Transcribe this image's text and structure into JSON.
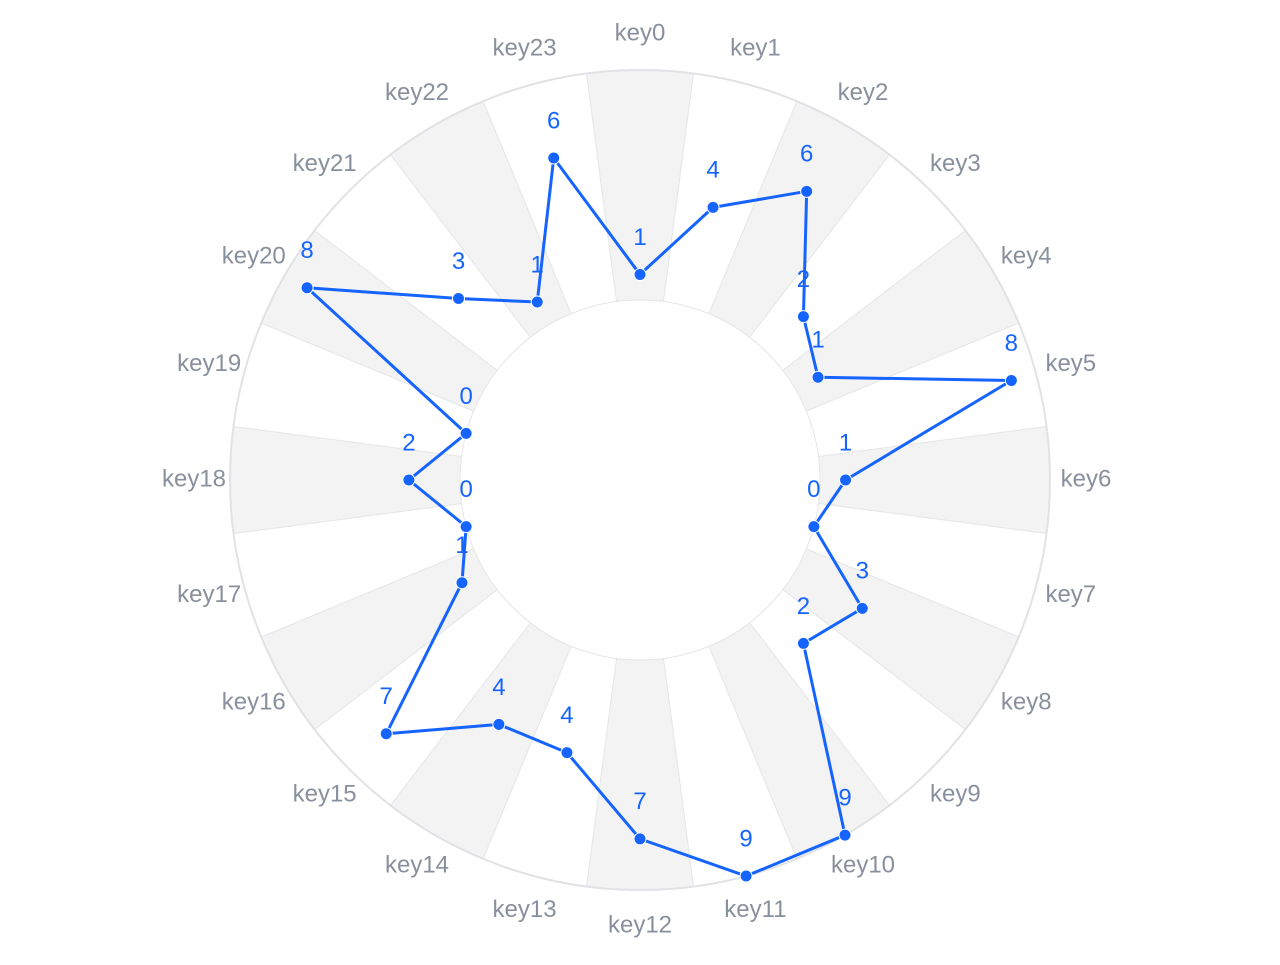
{
  "chart_data": {
    "type": "radar",
    "categories": [
      "key0",
      "key1",
      "key2",
      "key3",
      "key4",
      "key5",
      "key6",
      "key7",
      "key8",
      "key9",
      "key10",
      "key11",
      "key12",
      "key13",
      "key14",
      "key15",
      "key16",
      "key17",
      "key18",
      "key19",
      "key20",
      "key21",
      "key22",
      "key23"
    ],
    "values": [
      1,
      4,
      6,
      2,
      1,
      8,
      1,
      0,
      3,
      2,
      9,
      9,
      7,
      4,
      4,
      7,
      1,
      0,
      2,
      0,
      8,
      3,
      1,
      6
    ],
    "color": "#1664ff",
    "ylim": [
      0,
      9
    ]
  }
}
